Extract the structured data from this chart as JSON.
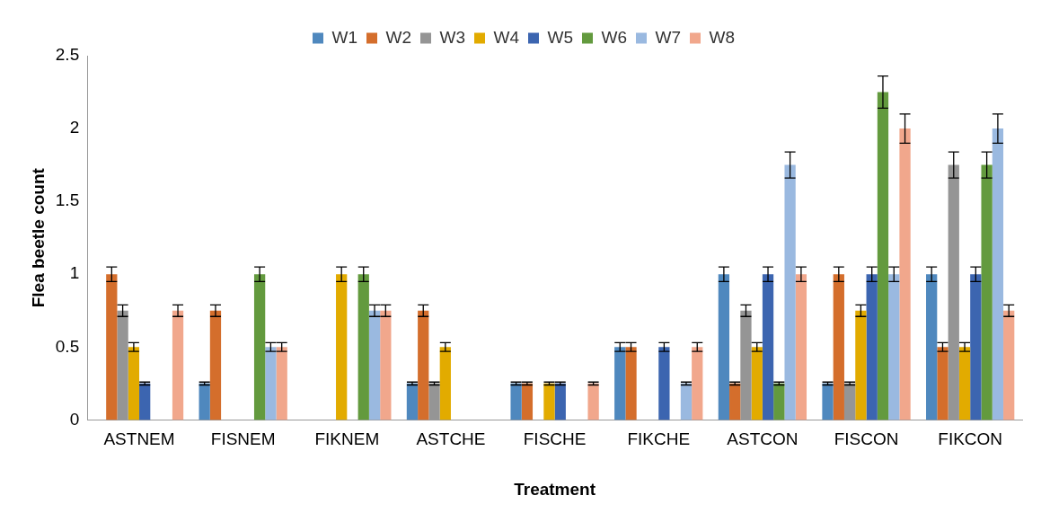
{
  "chart_data": {
    "type": "bar",
    "xlabel": "Treatment",
    "ylabel": "Flea beetle count",
    "categories": [
      "ASTNEM",
      "FISNEM",
      "FIKNEM",
      "ASTCHE",
      "FISCHE",
      "FIKCHE",
      "ASTCON",
      "FISCON",
      "FIKCON"
    ],
    "series": [
      {
        "name": "W1",
        "color": "#4f88be",
        "values": [
          0,
          0.25,
          0,
          0.25,
          0.25,
          0.5,
          1,
          0.25,
          1
        ],
        "errors": [
          null,
          0.01,
          null,
          0.01,
          0.01,
          0.03,
          0.05,
          0.01,
          0.05
        ]
      },
      {
        "name": "W2",
        "color": "#d46e2c",
        "values": [
          1,
          0.75,
          0,
          0.75,
          0.25,
          0.5,
          0.25,
          1,
          0.5
        ],
        "errors": [
          0.05,
          0.04,
          null,
          0.04,
          0.01,
          0.03,
          0.01,
          0.05,
          0.03
        ]
      },
      {
        "name": "W3",
        "color": "#959595",
        "values": [
          0.75,
          0,
          0,
          0.25,
          0,
          0,
          0.75,
          0.25,
          1.75
        ],
        "errors": [
          0.04,
          null,
          null,
          0.01,
          null,
          null,
          0.04,
          0.01,
          0.09
        ]
      },
      {
        "name": "W4",
        "color": "#e2ab00",
        "values": [
          0.5,
          0,
          1,
          0.5,
          0.25,
          0,
          0.5,
          0.75,
          0.5
        ],
        "errors": [
          0.03,
          null,
          0.05,
          0.03,
          0.01,
          null,
          0.03,
          0.04,
          0.03
        ]
      },
      {
        "name": "W5",
        "color": "#3c65b0",
        "values": [
          0.25,
          0,
          0,
          0,
          0.25,
          0.5,
          1,
          1,
          1
        ],
        "errors": [
          0.01,
          null,
          null,
          null,
          0.01,
          0.03,
          0.05,
          0.05,
          0.05
        ]
      },
      {
        "name": "W6",
        "color": "#639a3e",
        "values": [
          0,
          1,
          1,
          0,
          0,
          0,
          0.25,
          2.25,
          1.75
        ],
        "errors": [
          null,
          0.05,
          0.05,
          null,
          null,
          null,
          0.01,
          0.11,
          0.09
        ]
      },
      {
        "name": "W7",
        "color": "#9ab9e0",
        "values": [
          0,
          0.5,
          0.75,
          0,
          0,
          0.25,
          1.75,
          1,
          2
        ],
        "errors": [
          null,
          0.03,
          0.04,
          null,
          null,
          0.01,
          0.09,
          0.05,
          0.1
        ]
      },
      {
        "name": "W8",
        "color": "#f1a78c",
        "values": [
          0.75,
          0.5,
          0.75,
          0,
          0.25,
          0.5,
          1,
          2,
          0.75
        ],
        "errors": [
          0.04,
          0.03,
          0.04,
          null,
          0.01,
          0.03,
          0.05,
          0.1,
          0.04
        ]
      }
    ],
    "ylim": [
      0,
      2.5
    ],
    "yticks": [
      0,
      0.5,
      1,
      1.5,
      2,
      2.5
    ],
    "grid": false,
    "legend": "top"
  }
}
